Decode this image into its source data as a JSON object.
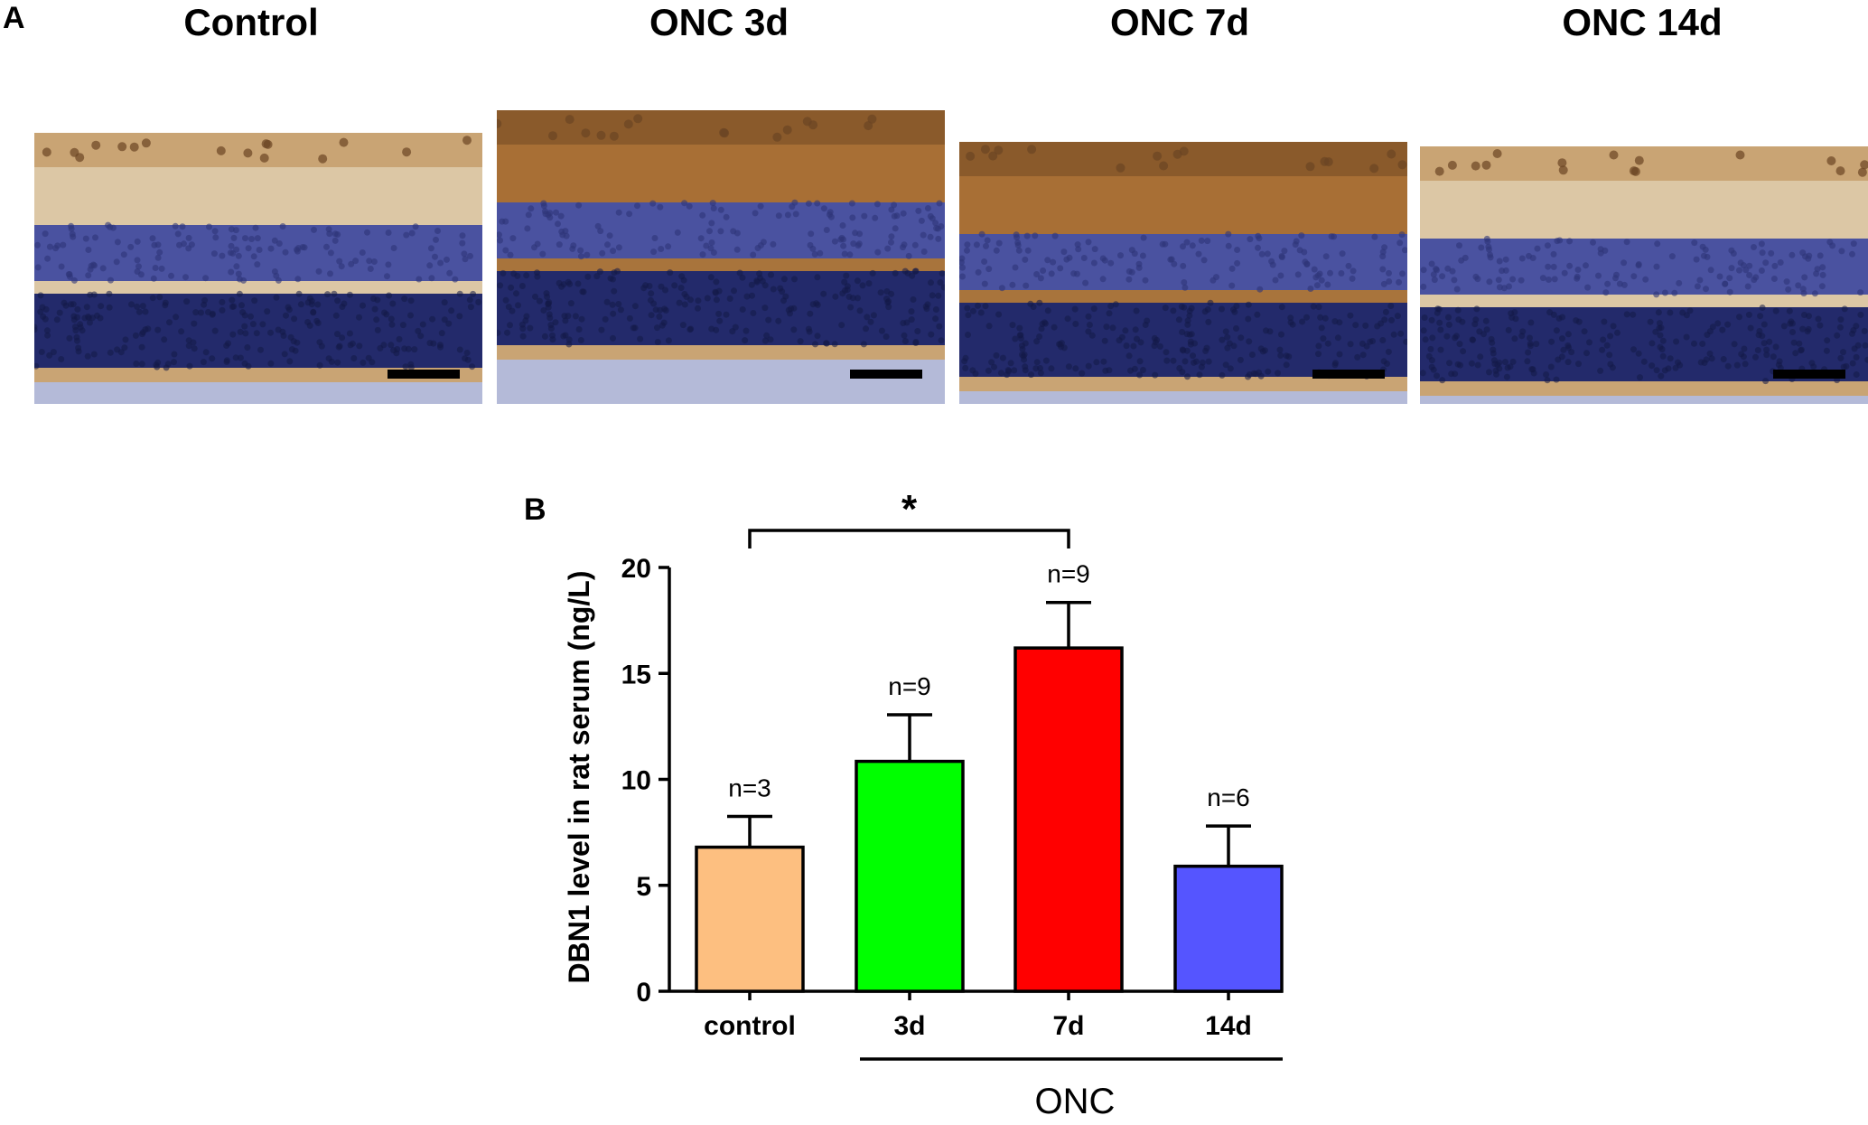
{
  "figure": {
    "panel_a_label": "A",
    "panel_b_label": "B"
  },
  "panel_a": {
    "panels": [
      {
        "title": "Control",
        "stain_intensity": "moderate"
      },
      {
        "title": "ONC 3d",
        "stain_intensity": "strong"
      },
      {
        "title": "ONC 7d",
        "stain_intensity": "strong"
      },
      {
        "title": "ONC 14d",
        "stain_intensity": "moderate"
      }
    ],
    "colors": {
      "dab_brown": "#8a5a2b",
      "light_brown": "#c9a474",
      "pale_layer": "#dcc7a5",
      "hematoxylin_blue": "#4a52a0",
      "dark_nuclei": "#232a6b",
      "scale_bar": "#000000"
    }
  },
  "chart_data": {
    "type": "bar",
    "categories": [
      "control",
      "3d",
      "7d",
      "14d"
    ],
    "values": [
      6.8,
      10.85,
      16.2,
      5.9
    ],
    "errors": [
      1.45,
      2.2,
      2.15,
      1.9
    ],
    "n_labels": [
      "n=3",
      "n=9",
      "n=9",
      "n=6"
    ],
    "colors": [
      "#fdbf80",
      "#00ff00",
      "#ff0000",
      "#5555ff"
    ],
    "ylabel": "DBN1 level in rat serum (ng/L)",
    "ylim": [
      0,
      20
    ],
    "yticks": [
      0,
      5,
      10,
      15,
      20
    ],
    "group_label": "ONC",
    "significance": {
      "from": "control",
      "to": "7d",
      "label": "*"
    },
    "grid": false,
    "legend": "none"
  }
}
